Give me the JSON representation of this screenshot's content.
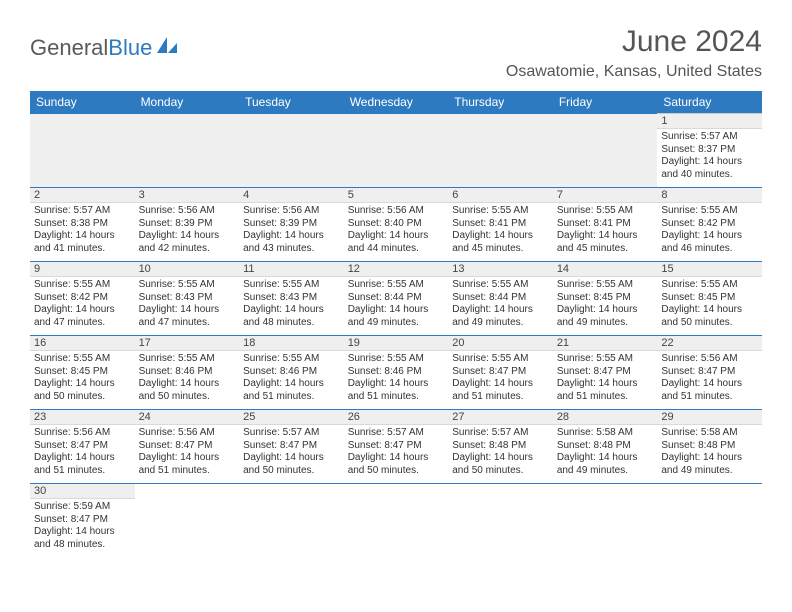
{
  "brand": {
    "part1": "General",
    "part2": "Blue"
  },
  "title": "June 2024",
  "location": "Osawatomie, Kansas, United States",
  "colors": {
    "header_bg": "#2d7ac0",
    "header_text": "#ffffff",
    "border": "#2d7ac0",
    "daynum_bg": "#efefef",
    "text": "#333333",
    "brand_gray": "#5a5a5a",
    "brand_blue": "#2d7ac0"
  },
  "day_labels": [
    "Sunday",
    "Monday",
    "Tuesday",
    "Wednesday",
    "Thursday",
    "Friday",
    "Saturday"
  ],
  "weeks": [
    [
      null,
      null,
      null,
      null,
      null,
      null,
      {
        "n": "1",
        "sr": "Sunrise: 5:57 AM",
        "ss": "Sunset: 8:37 PM",
        "d1": "Daylight: 14 hours",
        "d2": "and 40 minutes."
      }
    ],
    [
      {
        "n": "2",
        "sr": "Sunrise: 5:57 AM",
        "ss": "Sunset: 8:38 PM",
        "d1": "Daylight: 14 hours",
        "d2": "and 41 minutes."
      },
      {
        "n": "3",
        "sr": "Sunrise: 5:56 AM",
        "ss": "Sunset: 8:39 PM",
        "d1": "Daylight: 14 hours",
        "d2": "and 42 minutes."
      },
      {
        "n": "4",
        "sr": "Sunrise: 5:56 AM",
        "ss": "Sunset: 8:39 PM",
        "d1": "Daylight: 14 hours",
        "d2": "and 43 minutes."
      },
      {
        "n": "5",
        "sr": "Sunrise: 5:56 AM",
        "ss": "Sunset: 8:40 PM",
        "d1": "Daylight: 14 hours",
        "d2": "and 44 minutes."
      },
      {
        "n": "6",
        "sr": "Sunrise: 5:55 AM",
        "ss": "Sunset: 8:41 PM",
        "d1": "Daylight: 14 hours",
        "d2": "and 45 minutes."
      },
      {
        "n": "7",
        "sr": "Sunrise: 5:55 AM",
        "ss": "Sunset: 8:41 PM",
        "d1": "Daylight: 14 hours",
        "d2": "and 45 minutes."
      },
      {
        "n": "8",
        "sr": "Sunrise: 5:55 AM",
        "ss": "Sunset: 8:42 PM",
        "d1": "Daylight: 14 hours",
        "d2": "and 46 minutes."
      }
    ],
    [
      {
        "n": "9",
        "sr": "Sunrise: 5:55 AM",
        "ss": "Sunset: 8:42 PM",
        "d1": "Daylight: 14 hours",
        "d2": "and 47 minutes."
      },
      {
        "n": "10",
        "sr": "Sunrise: 5:55 AM",
        "ss": "Sunset: 8:43 PM",
        "d1": "Daylight: 14 hours",
        "d2": "and 47 minutes."
      },
      {
        "n": "11",
        "sr": "Sunrise: 5:55 AM",
        "ss": "Sunset: 8:43 PM",
        "d1": "Daylight: 14 hours",
        "d2": "and 48 minutes."
      },
      {
        "n": "12",
        "sr": "Sunrise: 5:55 AM",
        "ss": "Sunset: 8:44 PM",
        "d1": "Daylight: 14 hours",
        "d2": "and 49 minutes."
      },
      {
        "n": "13",
        "sr": "Sunrise: 5:55 AM",
        "ss": "Sunset: 8:44 PM",
        "d1": "Daylight: 14 hours",
        "d2": "and 49 minutes."
      },
      {
        "n": "14",
        "sr": "Sunrise: 5:55 AM",
        "ss": "Sunset: 8:45 PM",
        "d1": "Daylight: 14 hours",
        "d2": "and 49 minutes."
      },
      {
        "n": "15",
        "sr": "Sunrise: 5:55 AM",
        "ss": "Sunset: 8:45 PM",
        "d1": "Daylight: 14 hours",
        "d2": "and 50 minutes."
      }
    ],
    [
      {
        "n": "16",
        "sr": "Sunrise: 5:55 AM",
        "ss": "Sunset: 8:45 PM",
        "d1": "Daylight: 14 hours",
        "d2": "and 50 minutes."
      },
      {
        "n": "17",
        "sr": "Sunrise: 5:55 AM",
        "ss": "Sunset: 8:46 PM",
        "d1": "Daylight: 14 hours",
        "d2": "and 50 minutes."
      },
      {
        "n": "18",
        "sr": "Sunrise: 5:55 AM",
        "ss": "Sunset: 8:46 PM",
        "d1": "Daylight: 14 hours",
        "d2": "and 51 minutes."
      },
      {
        "n": "19",
        "sr": "Sunrise: 5:55 AM",
        "ss": "Sunset: 8:46 PM",
        "d1": "Daylight: 14 hours",
        "d2": "and 51 minutes."
      },
      {
        "n": "20",
        "sr": "Sunrise: 5:55 AM",
        "ss": "Sunset: 8:47 PM",
        "d1": "Daylight: 14 hours",
        "d2": "and 51 minutes."
      },
      {
        "n": "21",
        "sr": "Sunrise: 5:55 AM",
        "ss": "Sunset: 8:47 PM",
        "d1": "Daylight: 14 hours",
        "d2": "and 51 minutes."
      },
      {
        "n": "22",
        "sr": "Sunrise: 5:56 AM",
        "ss": "Sunset: 8:47 PM",
        "d1": "Daylight: 14 hours",
        "d2": "and 51 minutes."
      }
    ],
    [
      {
        "n": "23",
        "sr": "Sunrise: 5:56 AM",
        "ss": "Sunset: 8:47 PM",
        "d1": "Daylight: 14 hours",
        "d2": "and 51 minutes."
      },
      {
        "n": "24",
        "sr": "Sunrise: 5:56 AM",
        "ss": "Sunset: 8:47 PM",
        "d1": "Daylight: 14 hours",
        "d2": "and 51 minutes."
      },
      {
        "n": "25",
        "sr": "Sunrise: 5:57 AM",
        "ss": "Sunset: 8:47 PM",
        "d1": "Daylight: 14 hours",
        "d2": "and 50 minutes."
      },
      {
        "n": "26",
        "sr": "Sunrise: 5:57 AM",
        "ss": "Sunset: 8:47 PM",
        "d1": "Daylight: 14 hours",
        "d2": "and 50 minutes."
      },
      {
        "n": "27",
        "sr": "Sunrise: 5:57 AM",
        "ss": "Sunset: 8:48 PM",
        "d1": "Daylight: 14 hours",
        "d2": "and 50 minutes."
      },
      {
        "n": "28",
        "sr": "Sunrise: 5:58 AM",
        "ss": "Sunset: 8:48 PM",
        "d1": "Daylight: 14 hours",
        "d2": "and 49 minutes."
      },
      {
        "n": "29",
        "sr": "Sunrise: 5:58 AM",
        "ss": "Sunset: 8:48 PM",
        "d1": "Daylight: 14 hours",
        "d2": "and 49 minutes."
      }
    ],
    [
      {
        "n": "30",
        "sr": "Sunrise: 5:59 AM",
        "ss": "Sunset: 8:47 PM",
        "d1": "Daylight: 14 hours",
        "d2": "and 48 minutes."
      },
      null,
      null,
      null,
      null,
      null,
      null
    ]
  ]
}
